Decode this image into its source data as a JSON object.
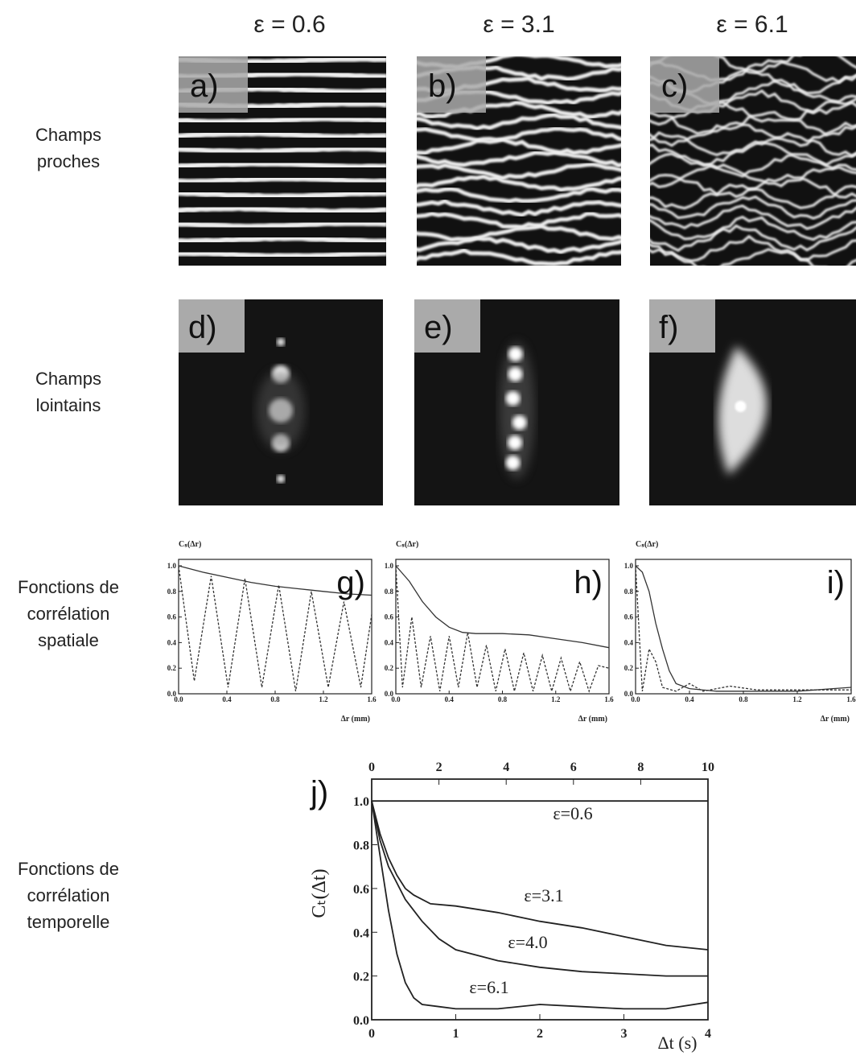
{
  "columns": [
    "ε = 0.6",
    "ε = 3.1",
    "ε = 6.1"
  ],
  "rows": [
    [
      "Champs",
      "proches"
    ],
    [
      "Champs",
      "lointains"
    ],
    [
      "Fonctions de",
      "corrélation",
      "spatiale"
    ],
    [
      "Fonctions de",
      "corrélation",
      "temporelle"
    ]
  ],
  "near_field_panels": [
    "a)",
    "b)",
    "c)"
  ],
  "far_field_panels": [
    "d)",
    "e)",
    "f)"
  ],
  "chart_data": [
    {
      "type": "line",
      "title": "g)",
      "y_label": "Cₛ(Δr)",
      "x_label": "Δr (mm)",
      "xlim": [
        0,
        1.6
      ],
      "xticks": [
        {
          "value": 0,
          "label": "0.0"
        },
        0.4,
        0.8,
        1.2,
        1.6
      ],
      "ylim": [
        0,
        1.05
      ],
      "yticks": [
        {
          "value": 0,
          "label": "0.0"
        },
        0.2,
        0.4,
        0.6,
        0.8,
        {
          "value": 1,
          "label": "1.0"
        }
      ],
      "series": [
        {
          "color": "#333333",
          "dash": false,
          "x": [
            0,
            0.2,
            0.4,
            0.6,
            0.8,
            1.0,
            1.2,
            1.4,
            1.6
          ],
          "values": [
            1.0,
            0.95,
            0.91,
            0.87,
            0.84,
            0.82,
            0.8,
            0.78,
            0.77
          ]
        },
        {
          "color": "#333333",
          "dash": true,
          "x": [
            0,
            0.13,
            0.27,
            0.41,
            0.55,
            0.69,
            0.83,
            0.97,
            1.1,
            1.24,
            1.37,
            1.51,
            1.6
          ],
          "values": [
            1.0,
            0.1,
            0.92,
            0.05,
            0.9,
            0.05,
            0.85,
            0.02,
            0.8,
            0.05,
            0.72,
            0.05,
            0.62
          ]
        }
      ]
    },
    {
      "type": "line",
      "title": "h)",
      "y_label": "Cₛ(Δr)",
      "x_label": "Δr (mm)",
      "xlim": [
        0,
        1.6
      ],
      "xticks": [
        {
          "value": 0,
          "label": "0.0"
        },
        0.4,
        0.8,
        1.2,
        1.6
      ],
      "ylim": [
        0,
        1.05
      ],
      "yticks": [
        {
          "value": 0,
          "label": "0.0"
        },
        0.2,
        0.4,
        0.6,
        0.8,
        {
          "value": 1,
          "label": "1.0"
        }
      ],
      "series": [
        {
          "color": "#333333",
          "dash": false,
          "x": [
            0,
            0.1,
            0.2,
            0.3,
            0.4,
            0.5,
            0.6,
            0.8,
            1.0,
            1.2,
            1.4,
            1.6
          ],
          "values": [
            1.0,
            0.88,
            0.72,
            0.6,
            0.52,
            0.48,
            0.47,
            0.47,
            0.46,
            0.43,
            0.4,
            0.36
          ]
        },
        {
          "color": "#333333",
          "dash": true,
          "x": [
            0,
            0.05,
            0.12,
            0.19,
            0.26,
            0.33,
            0.4,
            0.47,
            0.54,
            0.61,
            0.68,
            0.75,
            0.82,
            0.89,
            0.96,
            1.03,
            1.1,
            1.17,
            1.24,
            1.31,
            1.38,
            1.45,
            1.52,
            1.6
          ],
          "values": [
            1.0,
            0.05,
            0.6,
            0.05,
            0.45,
            0.02,
            0.45,
            0.05,
            0.48,
            0.05,
            0.38,
            0.02,
            0.35,
            0.02,
            0.32,
            0.02,
            0.3,
            0.02,
            0.28,
            0.02,
            0.25,
            0.02,
            0.22,
            0.2
          ]
        }
      ]
    },
    {
      "type": "line",
      "title": "i)",
      "y_label": "Cₛ(Δr)",
      "x_label": "Δr (mm)",
      "xlim": [
        0,
        1.6
      ],
      "xticks": [
        {
          "value": 0,
          "label": "0.0"
        },
        0.4,
        0.8,
        1.2,
        1.6
      ],
      "ylim": [
        0,
        1.05
      ],
      "yticks": [
        {
          "value": 0,
          "label": "0.0"
        },
        0.2,
        0.4,
        0.6,
        0.8,
        {
          "value": 1,
          "label": "1.0"
        }
      ],
      "series": [
        {
          "color": "#333333",
          "dash": false,
          "x": [
            0,
            0.05,
            0.1,
            0.15,
            0.2,
            0.25,
            0.3,
            0.4,
            0.6,
            0.8,
            1.2,
            1.6
          ],
          "values": [
            1.0,
            0.95,
            0.8,
            0.55,
            0.35,
            0.18,
            0.08,
            0.04,
            0.02,
            0.02,
            0.02,
            0.05
          ]
        },
        {
          "color": "#333333",
          "dash": true,
          "x": [
            0,
            0.05,
            0.1,
            0.15,
            0.2,
            0.3,
            0.4,
            0.5,
            0.7,
            0.9,
            1.2,
            1.6
          ],
          "values": [
            1.0,
            0.02,
            0.35,
            0.25,
            0.05,
            0.02,
            0.08,
            0.02,
            0.06,
            0.03,
            0.03,
            0.03
          ]
        }
      ]
    },
    {
      "type": "line",
      "title": "j)",
      "y_label": "Cₜ(Δt)",
      "x_label": "Δt (s)",
      "xlim": [
        0,
        4
      ],
      "xticks": [
        0,
        1,
        2,
        3,
        4
      ],
      "x2lim": [
        0,
        10
      ],
      "x2ticks": [
        0,
        2,
        4,
        6,
        8,
        10
      ],
      "ylim": [
        0,
        1.1
      ],
      "yticks": [
        {
          "value": 0,
          "label": "0.0"
        },
        0.2,
        0.4,
        0.6,
        0.8,
        {
          "value": 1,
          "label": "1.0"
        }
      ],
      "series": [
        {
          "name": "ε=0.6",
          "color": "#222222",
          "dash": false,
          "x": [
            0,
            4
          ],
          "values": [
            1.0,
            1.0
          ]
        },
        {
          "name": "ε=3.1",
          "color": "#222222",
          "dash": false,
          "x": [
            0,
            0.1,
            0.2,
            0.3,
            0.4,
            0.5,
            0.7,
            1.0,
            1.5,
            2.0,
            2.5,
            3.0,
            3.5,
            4.0
          ],
          "values": [
            1.0,
            0.85,
            0.74,
            0.66,
            0.6,
            0.57,
            0.53,
            0.52,
            0.49,
            0.45,
            0.42,
            0.38,
            0.34,
            0.32
          ]
        },
        {
          "name": "ε=4.0",
          "color": "#222222",
          "dash": false,
          "x": [
            0,
            0.1,
            0.2,
            0.4,
            0.6,
            0.8,
            1.0,
            1.5,
            2.0,
            2.5,
            3.0,
            3.5,
            4.0
          ],
          "values": [
            1.0,
            0.82,
            0.7,
            0.55,
            0.45,
            0.37,
            0.32,
            0.27,
            0.24,
            0.22,
            0.21,
            0.2,
            0.2
          ]
        },
        {
          "name": "ε=6.1",
          "color": "#222222",
          "dash": false,
          "x": [
            0,
            0.1,
            0.2,
            0.3,
            0.4,
            0.5,
            0.6,
            0.8,
            1.0,
            1.5,
            2.0,
            2.5,
            3.0,
            3.5,
            4.0
          ],
          "values": [
            1.0,
            0.75,
            0.5,
            0.3,
            0.17,
            0.1,
            0.07,
            0.06,
            0.05,
            0.05,
            0.07,
            0.06,
            0.05,
            0.05,
            0.08
          ]
        }
      ]
    }
  ]
}
